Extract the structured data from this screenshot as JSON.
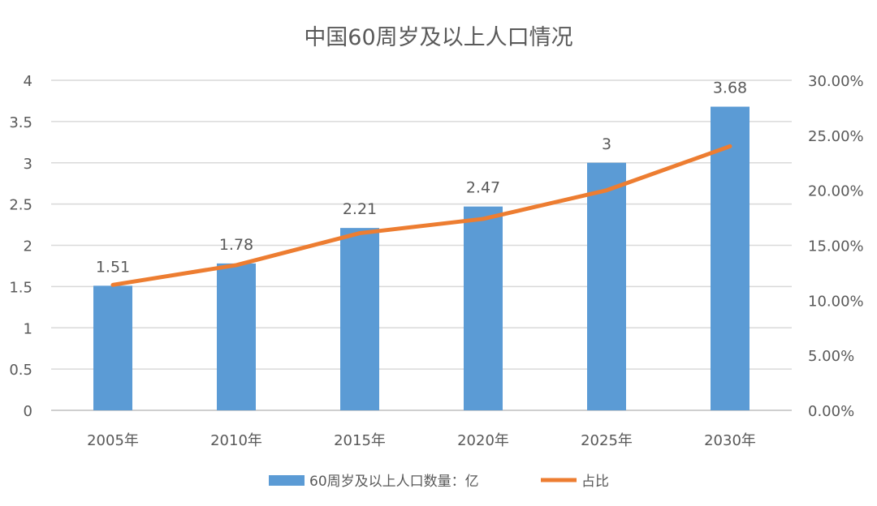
{
  "chart_data": {
    "type": "bar+line",
    "title": "中国60周岁及以上人口情况",
    "categories": [
      "2005年",
      "2010年",
      "2015年",
      "2020年",
      "2025年",
      "2030年"
    ],
    "series": [
      {
        "name": "60周岁及以上人口数量：亿",
        "type": "bar",
        "axis": "left",
        "values": [
          1.51,
          1.78,
          2.21,
          2.47,
          3,
          3.68
        ],
        "data_labels": [
          "1.51",
          "1.78",
          "2.21",
          "2.47",
          "3",
          "3.68"
        ],
        "color": "#5B9BD5"
      },
      {
        "name": "占比",
        "type": "line",
        "axis": "right",
        "values": [
          11.4,
          13.2,
          16.1,
          17.4,
          20.0,
          24.0
        ],
        "color": "#ED7D31"
      }
    ],
    "y_left": {
      "range": [
        0,
        4
      ],
      "ticks": [
        "0",
        "0.5",
        "1",
        "1.5",
        "2",
        "2.5",
        "3",
        "3.5",
        "4"
      ]
    },
    "y_right": {
      "range": [
        0,
        30
      ],
      "unit": "%",
      "ticks": [
        "0.00%",
        "5.00%",
        "10.00%",
        "15.00%",
        "20.00%",
        "25.00%",
        "30.00%"
      ]
    },
    "grid": true,
    "legend_position": "bottom"
  }
}
